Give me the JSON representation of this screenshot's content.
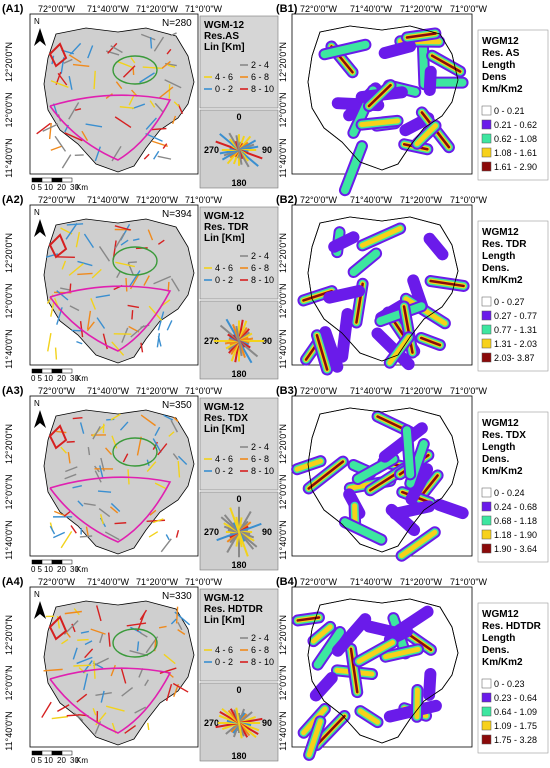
{
  "rows": [
    {
      "left": {
        "tag": "(A1)",
        "n": "N=280",
        "legend_title": [
          "WGM-12",
          "Res.AS",
          "Lin [Km]"
        ]
      },
      "right": {
        "tag": "(B1)",
        "legend_title": [
          "WGM12",
          "Res. AS",
          "Length",
          "Dens",
          "Km/Km2"
        ],
        "classes": [
          "0 - 0.21",
          "0.21 - 0.62",
          "0.62 - 1.08",
          "1.08 - 1.61",
          "1.61 - 2.90"
        ]
      }
    },
    {
      "left": {
        "tag": "(A2)",
        "n": "N=394",
        "legend_title": [
          "WGM-12",
          "Res. TDR",
          "Lin [Km]"
        ]
      },
      "right": {
        "tag": "(B2)",
        "legend_title": [
          "WGM12",
          "Res. TDR",
          "Length",
          "Dens.",
          "Km/Km2"
        ],
        "classes": [
          "0 - 0.27",
          "0.27 - 0.77",
          "0.77 - 1.31",
          "1.31 - 2.03",
          "2.03- 3.87"
        ]
      }
    },
    {
      "left": {
        "tag": "(A3)",
        "n": "N=350",
        "legend_title": [
          "WGM-12",
          "Res. TDX",
          "Lin [Km]"
        ]
      },
      "right": {
        "tag": "(B3)",
        "legend_title": [
          "WGM12",
          "Res. TDX",
          "Length",
          "Dens.",
          "Km/Km2"
        ],
        "classes": [
          "0 - 0.24",
          "0.24 - 0.68",
          "0.68 - 1.18",
          "1.18 - 1.90",
          "1.90 - 3.64"
        ]
      }
    },
    {
      "left": {
        "tag": "(A4)",
        "n": "N=330",
        "legend_title": [
          "WGM-12",
          "Res. HDTDR",
          "Lin [Km]"
        ]
      },
      "right": {
        "tag": "(B4)",
        "legend_title": [
          "WGM12",
          "Res. HDTDR",
          "Length",
          "Dens.",
          "Km/Km2"
        ],
        "classes": [
          "0 - 0.23",
          "0.23 - 0.64",
          "0.64 - 1.09",
          "1.09 - 1.75",
          "1.75 - 3.28"
        ]
      }
    }
  ],
  "length_classes": [
    "0 - 2",
    "2 - 4",
    "4 - 6",
    "6 - 8",
    "8 - 10"
  ],
  "line_colors": [
    "#3a8fd0",
    "#888888",
    "#f2d21b",
    "#f08a1c",
    "#d62020"
  ],
  "density_colors": [
    "#ffffff",
    "#6a1bea",
    "#3de6a0",
    "#f7d11a",
    "#8b0a0a"
  ],
  "lon_ticks": [
    "72°0'0\"W",
    "71°40'0\"W",
    "71°20'0\"W",
    "71°0'0\"W"
  ],
  "lat_ticks": [
    "12°20'0\"N",
    "12°0'0\"N",
    "11°40'0\"N"
  ],
  "north_label": "N",
  "scale_labels": [
    "0",
    "5",
    "10",
    "20",
    "30"
  ],
  "scale_unit": "Km",
  "rose_labels": {
    "n": "0",
    "e": "90",
    "s": "180",
    "w": "270"
  }
}
